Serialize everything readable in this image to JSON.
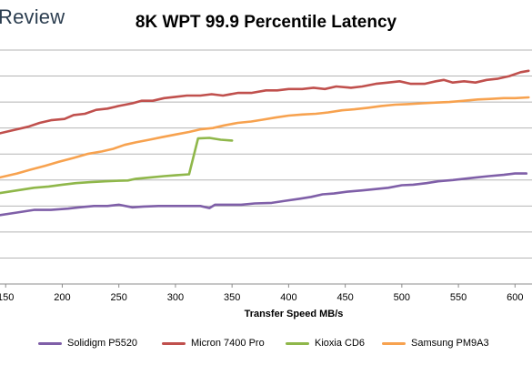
{
  "brand": "Review",
  "chart_data": {
    "type": "line",
    "title": "8K WPT 99.9 Percentile Latency",
    "xlabel": "Transfer Speed MB/s",
    "ylabel": "",
    "xlim": [
      145,
      615
    ],
    "ylim": [
      0,
      9
    ],
    "x_ticks": [
      150,
      200,
      250,
      300,
      350,
      400,
      450,
      500,
      550,
      600
    ],
    "grid": "horizontal",
    "legend_position": "bottom",
    "series": [
      {
        "name": "Solidigm P5520",
        "color": "#7f5fa8",
        "points": [
          [
            145,
            2.65
          ],
          [
            160,
            2.75
          ],
          [
            175,
            2.85
          ],
          [
            190,
            2.85
          ],
          [
            205,
            2.9
          ],
          [
            215,
            2.95
          ],
          [
            228,
            3.0
          ],
          [
            240,
            3.0
          ],
          [
            250,
            3.05
          ],
          [
            262,
            2.95
          ],
          [
            272,
            2.98
          ],
          [
            285,
            3.0
          ],
          [
            297,
            3.0
          ],
          [
            310,
            3.0
          ],
          [
            322,
            3.0
          ],
          [
            330,
            2.92
          ],
          [
            335,
            3.05
          ],
          [
            347,
            3.05
          ],
          [
            358,
            3.05
          ],
          [
            370,
            3.1
          ],
          [
            385,
            3.12
          ],
          [
            397,
            3.2
          ],
          [
            410,
            3.28
          ],
          [
            420,
            3.35
          ],
          [
            430,
            3.45
          ],
          [
            440,
            3.48
          ],
          [
            452,
            3.55
          ],
          [
            465,
            3.6
          ],
          [
            476,
            3.65
          ],
          [
            488,
            3.7
          ],
          [
            500,
            3.8
          ],
          [
            510,
            3.82
          ],
          [
            522,
            3.88
          ],
          [
            532,
            3.95
          ],
          [
            545,
            4.0
          ],
          [
            555,
            4.05
          ],
          [
            566,
            4.1
          ],
          [
            577,
            4.15
          ],
          [
            590,
            4.2
          ],
          [
            600,
            4.25
          ],
          [
            610,
            4.25
          ]
        ]
      },
      {
        "name": "Micron 7400 Pro",
        "color": "#c0504d",
        "points": [
          [
            145,
            5.8
          ],
          [
            155,
            5.9
          ],
          [
            170,
            6.05
          ],
          [
            180,
            6.2
          ],
          [
            190,
            6.3
          ],
          [
            202,
            6.35
          ],
          [
            210,
            6.5
          ],
          [
            220,
            6.55
          ],
          [
            230,
            6.7
          ],
          [
            240,
            6.75
          ],
          [
            250,
            6.85
          ],
          [
            262,
            6.95
          ],
          [
            270,
            7.05
          ],
          [
            280,
            7.05
          ],
          [
            290,
            7.15
          ],
          [
            300,
            7.2
          ],
          [
            310,
            7.25
          ],
          [
            322,
            7.25
          ],
          [
            332,
            7.3
          ],
          [
            342,
            7.25
          ],
          [
            355,
            7.35
          ],
          [
            367,
            7.35
          ],
          [
            380,
            7.45
          ],
          [
            390,
            7.45
          ],
          [
            400,
            7.5
          ],
          [
            412,
            7.5
          ],
          [
            422,
            7.55
          ],
          [
            432,
            7.5
          ],
          [
            442,
            7.6
          ],
          [
            455,
            7.55
          ],
          [
            465,
            7.6
          ],
          [
            477,
            7.7
          ],
          [
            488,
            7.75
          ],
          [
            498,
            7.8
          ],
          [
            508,
            7.7
          ],
          [
            520,
            7.7
          ],
          [
            530,
            7.8
          ],
          [
            537,
            7.85
          ],
          [
            545,
            7.75
          ],
          [
            555,
            7.8
          ],
          [
            565,
            7.75
          ],
          [
            575,
            7.85
          ],
          [
            585,
            7.9
          ],
          [
            595,
            8.0
          ],
          [
            605,
            8.15
          ],
          [
            612,
            8.2
          ]
        ]
      },
      {
        "name": "Kioxia CD6",
        "color": "#8fb74a",
        "points": [
          [
            145,
            3.5
          ],
          [
            160,
            3.6
          ],
          [
            175,
            3.7
          ],
          [
            188,
            3.75
          ],
          [
            200,
            3.82
          ],
          [
            212,
            3.88
          ],
          [
            225,
            3.92
          ],
          [
            238,
            3.95
          ],
          [
            250,
            3.97
          ],
          [
            258,
            3.98
          ],
          [
            265,
            4.05
          ],
          [
            278,
            4.1
          ],
          [
            290,
            4.15
          ],
          [
            300,
            4.18
          ],
          [
            312,
            4.22
          ],
          [
            320,
            5.6
          ],
          [
            330,
            5.62
          ],
          [
            340,
            5.55
          ],
          [
            350,
            5.52
          ]
        ]
      },
      {
        "name": "Samsung PM9A3",
        "color": "#f7a24f",
        "points": [
          [
            145,
            4.1
          ],
          [
            160,
            4.25
          ],
          [
            172,
            4.4
          ],
          [
            185,
            4.55
          ],
          [
            197,
            4.7
          ],
          [
            210,
            4.85
          ],
          [
            222,
            5.0
          ],
          [
            235,
            5.1
          ],
          [
            245,
            5.2
          ],
          [
            255,
            5.35
          ],
          [
            265,
            5.45
          ],
          [
            277,
            5.55
          ],
          [
            288,
            5.65
          ],
          [
            300,
            5.75
          ],
          [
            312,
            5.85
          ],
          [
            322,
            5.95
          ],
          [
            333,
            6.0
          ],
          [
            343,
            6.1
          ],
          [
            355,
            6.2
          ],
          [
            367,
            6.25
          ],
          [
            377,
            6.32
          ],
          [
            388,
            6.4
          ],
          [
            400,
            6.48
          ],
          [
            412,
            6.52
          ],
          [
            424,
            6.55
          ],
          [
            435,
            6.6
          ],
          [
            447,
            6.68
          ],
          [
            458,
            6.72
          ],
          [
            470,
            6.78
          ],
          [
            482,
            6.85
          ],
          [
            494,
            6.9
          ],
          [
            505,
            6.92
          ],
          [
            518,
            6.95
          ],
          [
            530,
            6.98
          ],
          [
            542,
            7.0
          ],
          [
            555,
            7.05
          ],
          [
            567,
            7.1
          ],
          [
            578,
            7.12
          ],
          [
            590,
            7.15
          ],
          [
            600,
            7.15
          ],
          [
            612,
            7.18
          ]
        ]
      }
    ]
  }
}
